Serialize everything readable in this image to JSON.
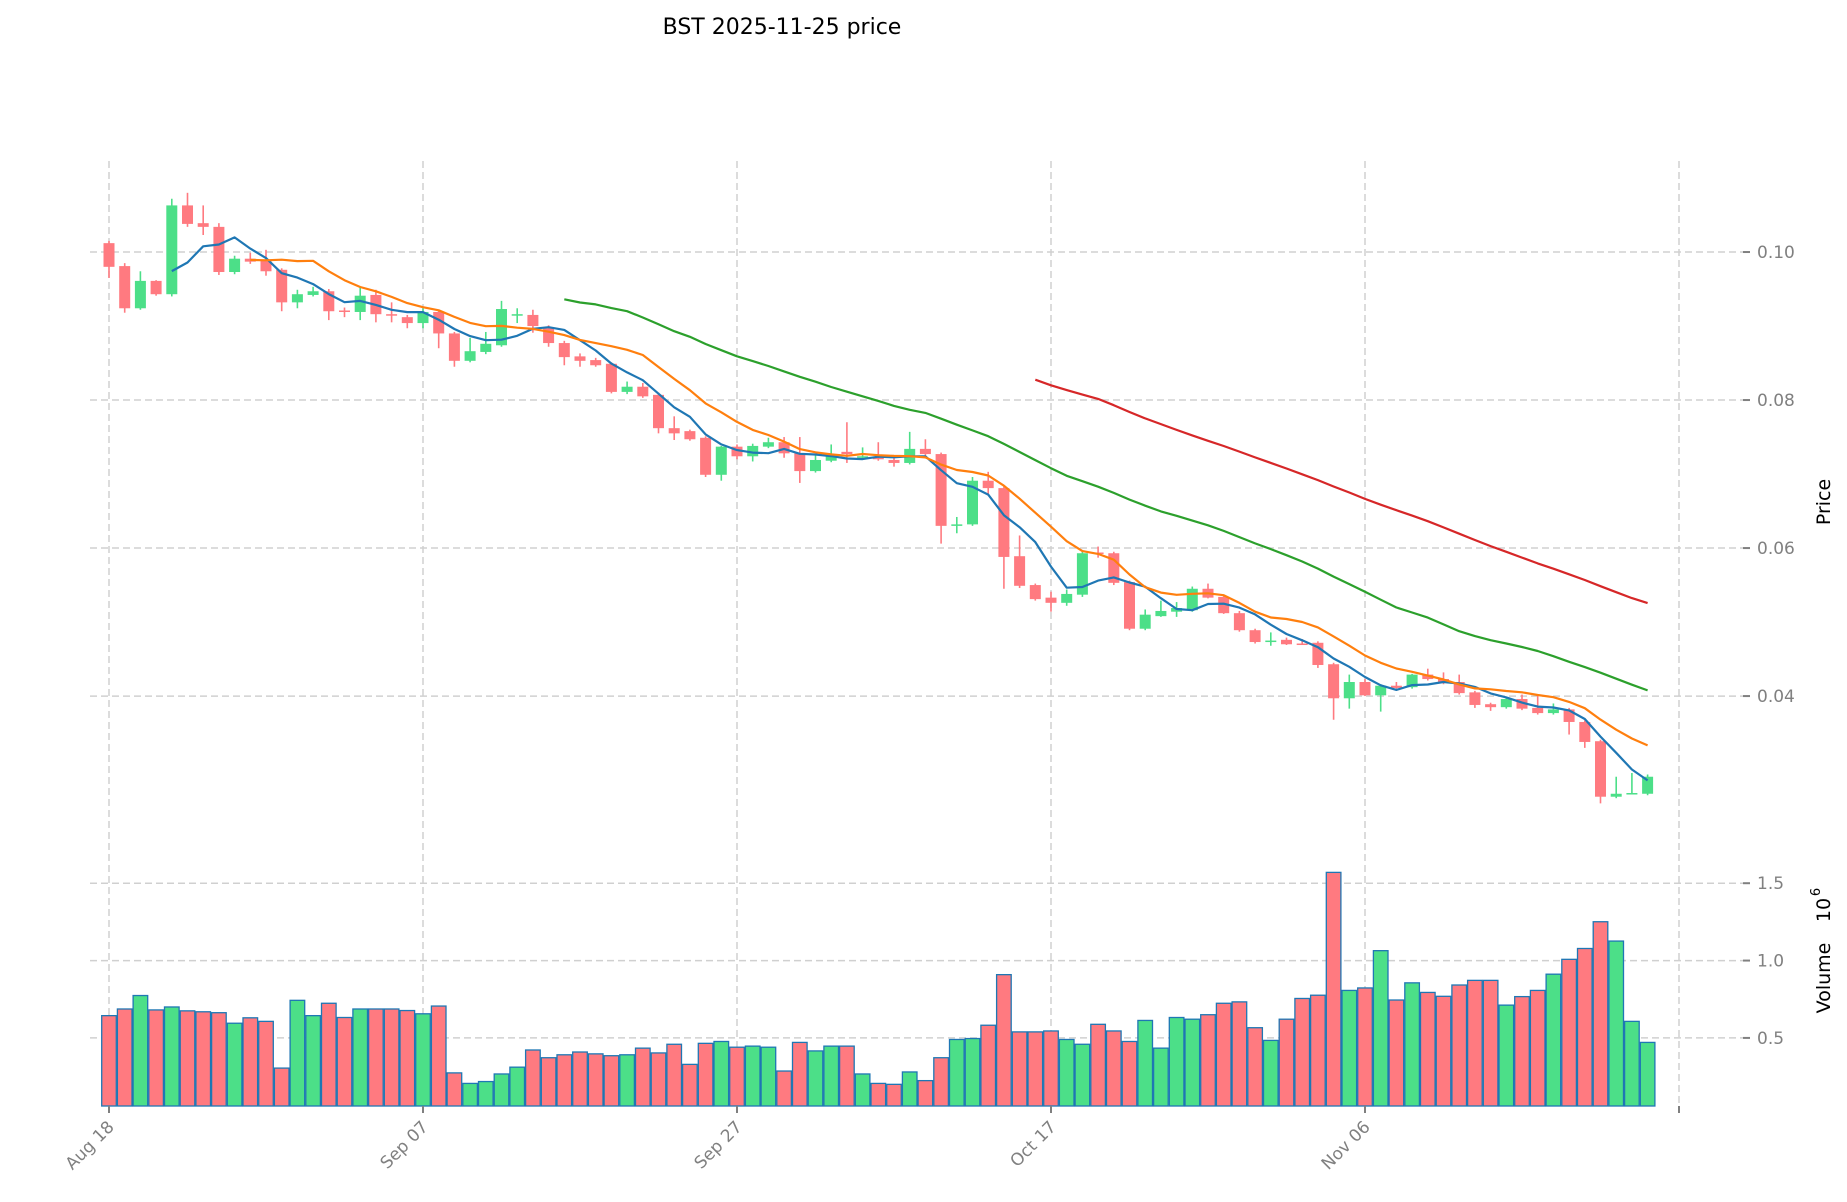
{
  "chart_data": {
    "type": "candlestick",
    "title": "BST  2025-11-25  price",
    "ylabel": "Price",
    "volume_label": "Volume",
    "volume_exponent_base": "10",
    "volume_exponent": "6",
    "x_tick_labels": [
      {
        "index": 0,
        "label": "Aug 18"
      },
      {
        "index": 20,
        "label": "Sep 07"
      },
      {
        "index": 40,
        "label": "Sep 27"
      },
      {
        "index": 60,
        "label": "Oct 17"
      },
      {
        "index": 80,
        "label": "Nov 06"
      },
      {
        "index": 100,
        "label": ""
      }
    ],
    "price_ticks": [
      0.04,
      0.06,
      0.08,
      0.1
    ],
    "price_tick_labels": [
      "0.04",
      "0.06",
      "0.08",
      "0.10"
    ],
    "price_ylim": [
      0.0192,
      0.1123
    ],
    "volume_ticks": [
      0.5,
      1.0,
      1.5
    ],
    "volume_tick_labels": [
      "0.5",
      "1.0",
      "1.5"
    ],
    "volume_ylim": [
      0.06,
      1.65
    ],
    "grid": true,
    "moving_averages": [
      {
        "period": 5,
        "color": "#1f77b4"
      },
      {
        "period": 10,
        "color": "#ff7f0e"
      },
      {
        "period": 30,
        "color": "#2ca02c"
      },
      {
        "period": 60,
        "color": "#d62728"
      }
    ],
    "colors": {
      "up": "#4cdf88",
      "down": "#ff7a80",
      "volume_edge": "#1f77b4"
    },
    "ohlc": [
      [
        0.1012,
        0.1015,
        0.0965,
        0.098
      ],
      [
        0.0981,
        0.0985,
        0.0918,
        0.0924
      ],
      [
        0.0924,
        0.0974,
        0.0922,
        0.0961
      ],
      [
        0.0961,
        0.0962,
        0.0941,
        0.0943
      ],
      [
        0.0943,
        0.1072,
        0.094,
        0.1063
      ],
      [
        0.1063,
        0.108,
        0.1034,
        0.1038
      ],
      [
        0.1039,
        0.1063,
        0.1023,
        0.1034
      ],
      [
        0.1034,
        0.1039,
        0.0969,
        0.0973
      ],
      [
        0.0973,
        0.0995,
        0.097,
        0.0991
      ],
      [
        0.0991,
        0.0999,
        0.0984,
        0.0987
      ],
      [
        0.0988,
        0.1003,
        0.0968,
        0.0974
      ],
      [
        0.0976,
        0.0978,
        0.092,
        0.0932
      ],
      [
        0.0932,
        0.0949,
        0.0924,
        0.0943
      ],
      [
        0.0942,
        0.0953,
        0.094,
        0.0947
      ],
      [
        0.0947,
        0.095,
        0.0908,
        0.092
      ],
      [
        0.0921,
        0.0925,
        0.0912,
        0.0919
      ],
      [
        0.0919,
        0.0953,
        0.0908,
        0.0941
      ],
      [
        0.0942,
        0.0949,
        0.0905,
        0.0916
      ],
      [
        0.0916,
        0.0932,
        0.0905,
        0.0914
      ],
      [
        0.0912,
        0.0915,
        0.0897,
        0.0904
      ],
      [
        0.0904,
        0.0924,
        0.0897,
        0.0919
      ],
      [
        0.0919,
        0.0921,
        0.087,
        0.089
      ],
      [
        0.089,
        0.0892,
        0.0845,
        0.0853
      ],
      [
        0.0853,
        0.0884,
        0.0851,
        0.0866
      ],
      [
        0.0865,
        0.0892,
        0.0862,
        0.0876
      ],
      [
        0.0874,
        0.0934,
        0.0872,
        0.0923
      ],
      [
        0.0915,
        0.0924,
        0.0904,
        0.0916
      ],
      [
        0.0915,
        0.0922,
        0.0891,
        0.09
      ],
      [
        0.0897,
        0.0901,
        0.0872,
        0.0877
      ],
      [
        0.0877,
        0.088,
        0.0847,
        0.0858
      ],
      [
        0.0859,
        0.0863,
        0.0845,
        0.0853
      ],
      [
        0.0854,
        0.0857,
        0.0845,
        0.0847
      ],
      [
        0.0849,
        0.0851,
        0.0809,
        0.0811
      ],
      [
        0.0811,
        0.0825,
        0.0808,
        0.0818
      ],
      [
        0.0818,
        0.0823,
        0.0803,
        0.0805
      ],
      [
        0.0807,
        0.081,
        0.0755,
        0.0762
      ],
      [
        0.0762,
        0.0778,
        0.0746,
        0.0755
      ],
      [
        0.0758,
        0.076,
        0.0745,
        0.0747
      ],
      [
        0.0749,
        0.0751,
        0.0696,
        0.0699
      ],
      [
        0.0699,
        0.0738,
        0.0691,
        0.0737
      ],
      [
        0.0737,
        0.074,
        0.072,
        0.0724
      ],
      [
        0.0724,
        0.0741,
        0.0717,
        0.0738
      ],
      [
        0.0737,
        0.0749,
        0.0735,
        0.0743
      ],
      [
        0.0743,
        0.075,
        0.0722,
        0.0728
      ],
      [
        0.0728,
        0.075,
        0.0688,
        0.0704
      ],
      [
        0.0704,
        0.0727,
        0.0702,
        0.0719
      ],
      [
        0.0718,
        0.074,
        0.0716,
        0.0727
      ],
      [
        0.073,
        0.077,
        0.0715,
        0.0727
      ],
      [
        0.0723,
        0.0736,
        0.072,
        0.0724
      ],
      [
        0.0722,
        0.0743,
        0.0718,
        0.072
      ],
      [
        0.0719,
        0.0722,
        0.071,
        0.0715
      ],
      [
        0.0715,
        0.0757,
        0.0713,
        0.0734
      ],
      [
        0.0734,
        0.0747,
        0.0725,
        0.0727
      ],
      [
        0.0727,
        0.0729,
        0.0606,
        0.063
      ],
      [
        0.063,
        0.0642,
        0.062,
        0.0632
      ],
      [
        0.0632,
        0.0696,
        0.063,
        0.0691
      ],
      [
        0.0691,
        0.0703,
        0.0671,
        0.0681
      ],
      [
        0.0681,
        0.0683,
        0.0545,
        0.0588
      ],
      [
        0.0589,
        0.0617,
        0.0546,
        0.0549
      ],
      [
        0.055,
        0.0552,
        0.0529,
        0.0531
      ],
      [
        0.0533,
        0.0541,
        0.0514,
        0.0526
      ],
      [
        0.0526,
        0.0544,
        0.0522,
        0.0538
      ],
      [
        0.0537,
        0.0597,
        0.0534,
        0.0593
      ],
      [
        0.0594,
        0.0602,
        0.0587,
        0.0592
      ],
      [
        0.0593,
        0.0595,
        0.055,
        0.0553
      ],
      [
        0.0554,
        0.0556,
        0.0489,
        0.0491
      ],
      [
        0.0491,
        0.0517,
        0.0489,
        0.051
      ],
      [
        0.0508,
        0.0529,
        0.0507,
        0.0515
      ],
      [
        0.0514,
        0.0527,
        0.0507,
        0.0519
      ],
      [
        0.0516,
        0.0548,
        0.0514,
        0.0545
      ],
      [
        0.0545,
        0.0552,
        0.0532,
        0.0533
      ],
      [
        0.0534,
        0.0536,
        0.0511,
        0.0512
      ],
      [
        0.0512,
        0.0515,
        0.0487,
        0.0489
      ],
      [
        0.0489,
        0.0491,
        0.0471,
        0.0473
      ],
      [
        0.0473,
        0.0486,
        0.0468,
        0.0475
      ],
      [
        0.0476,
        0.0479,
        0.0469,
        0.047
      ],
      [
        0.0471,
        0.0477,
        0.0469,
        0.047
      ],
      [
        0.0472,
        0.0474,
        0.0438,
        0.0442
      ],
      [
        0.0443,
        0.0445,
        0.0368,
        0.0397
      ],
      [
        0.0397,
        0.0429,
        0.0383,
        0.0419
      ],
      [
        0.0419,
        0.0423,
        0.04,
        0.0401
      ],
      [
        0.0401,
        0.0416,
        0.0379,
        0.0414
      ],
      [
        0.0414,
        0.0419,
        0.041,
        0.0411
      ],
      [
        0.0412,
        0.043,
        0.041,
        0.0429
      ],
      [
        0.0429,
        0.0437,
        0.0421,
        0.0423
      ],
      [
        0.0423,
        0.0432,
        0.0416,
        0.0418
      ],
      [
        0.0419,
        0.0429,
        0.0402,
        0.0404
      ],
      [
        0.0405,
        0.0407,
        0.0384,
        0.0388
      ],
      [
        0.0389,
        0.0391,
        0.038,
        0.0385
      ],
      [
        0.0385,
        0.0398,
        0.0383,
        0.0396
      ],
      [
        0.0396,
        0.0402,
        0.0381,
        0.0383
      ],
      [
        0.0384,
        0.04,
        0.0375,
        0.0377
      ],
      [
        0.0377,
        0.039,
        0.0375,
        0.0382
      ],
      [
        0.0382,
        0.0384,
        0.0348,
        0.0365
      ],
      [
        0.0365,
        0.0367,
        0.033,
        0.0338
      ],
      [
        0.0339,
        0.0341,
        0.0255,
        0.0264
      ],
      [
        0.0264,
        0.0291,
        0.0262,
        0.0268
      ],
      [
        0.0268,
        0.0296,
        0.0267,
        0.0269
      ],
      [
        0.0268,
        0.0294,
        0.0266,
        0.0291
      ]
    ],
    "volume": [
      0.644,
      0.687,
      0.774,
      0.681,
      0.7,
      0.675,
      0.669,
      0.663,
      0.595,
      0.63,
      0.607,
      0.305,
      0.743,
      0.644,
      0.724,
      0.632,
      0.687,
      0.687,
      0.687,
      0.677,
      0.656,
      0.706,
      0.274,
      0.206,
      0.218,
      0.267,
      0.311,
      0.422,
      0.372,
      0.391,
      0.409,
      0.397,
      0.385,
      0.391,
      0.434,
      0.403,
      0.459,
      0.329,
      0.465,
      0.477,
      0.44,
      0.447,
      0.44,
      0.286,
      0.471,
      0.416,
      0.447,
      0.447,
      0.267,
      0.206,
      0.2,
      0.28,
      0.224,
      0.372,
      0.49,
      0.496,
      0.582,
      0.909,
      0.539,
      0.539,
      0.545,
      0.49,
      0.459,
      0.588,
      0.545,
      0.477,
      0.613,
      0.434,
      0.632,
      0.621,
      0.65,
      0.724,
      0.733,
      0.566,
      0.484,
      0.621,
      0.755,
      0.776,
      1.57,
      0.807,
      0.823,
      1.064,
      0.745,
      0.856,
      0.794,
      0.769,
      0.842,
      0.872,
      0.872,
      0.712,
      0.767,
      0.807,
      0.912,
      1.008,
      1.078,
      1.251,
      1.126,
      0.607,
      0.471
    ]
  }
}
